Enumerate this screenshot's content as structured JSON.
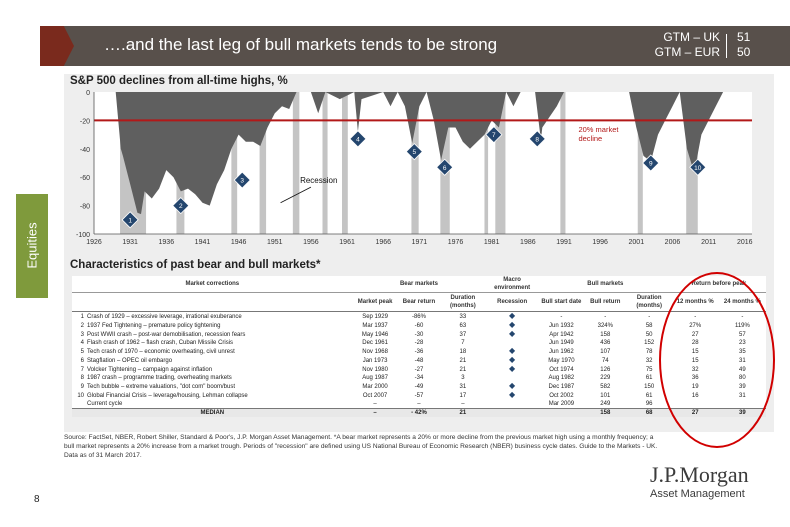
{
  "header": {
    "title": "….and the last leg of bull markets tends to be strong",
    "gtm_lines": [
      "GTM – UK",
      "GTM – EUR"
    ],
    "gtm_pages": [
      "51",
      "50"
    ]
  },
  "side_tab": "Equities",
  "page_number": "8",
  "logo": {
    "line1": "J.P.Morgan",
    "line2": "Asset Management"
  },
  "footnote": "Source: FactSet, NBER, Robert Shiller, Standard & Poor's, J.P. Morgan Asset Management. *A bear market represents a 20% or more decline from the previous market high using a monthly frequency; a bull market represents a 20% increase from a market trough. Periods of \"recession\" are defined using US National Bureau of Economic Research (NBER) business cycle dates. Guide to the Markets - UK. Data as of 31 March 2017.",
  "colors": {
    "header": "#58504b",
    "arrow": "#7a2a1d",
    "tab": "#7f9a3c",
    "area": "#5f5f5f",
    "recession": "#c4c4c4",
    "threshold": "#b21818",
    "marker": "#24466e",
    "oval": "#d10000"
  },
  "chart_data": {
    "type": "area",
    "title": "S&P 500 declines from all-time highs, %",
    "x_ticks": [
      "1926",
      "1931",
      "1936",
      "1941",
      "1946",
      "1951",
      "1956",
      "1961",
      "1966",
      "1971",
      "1976",
      "1981",
      "1986",
      "1991",
      "1996",
      "2001",
      "2006",
      "2011",
      "2016"
    ],
    "y_ticks": [
      0,
      -20,
      -40,
      -60,
      -80,
      -100
    ],
    "ylim": [
      -100,
      0
    ],
    "xlim": [
      1926,
      2017
    ],
    "series": [
      {
        "x": [
          1926,
          1929,
          1929.7,
          1930,
          1931,
          1932,
          1932.5,
          1933,
          1934,
          1935,
          1936,
          1937,
          1938,
          1939,
          1940,
          1941,
          1942,
          1943,
          1944,
          1945,
          1946,
          1947,
          1948,
          1949,
          1950,
          1951,
          1952,
          1953,
          1954,
          1956,
          1957,
          1958,
          1960,
          1962,
          1962.5,
          1963,
          1966,
          1967,
          1968,
          1969,
          1970,
          1971,
          1972,
          1973,
          1974,
          1975,
          1976,
          1977,
          1978,
          1979,
          1980,
          1981,
          1982,
          1983,
          1984,
          1985,
          1986,
          1987,
          1987.8,
          1988,
          1990,
          1991,
          1995,
          1998,
          2000,
          2001,
          2002,
          2003,
          2004,
          2005,
          2006,
          2007,
          2008,
          2009,
          2010,
          2011,
          2012,
          2013,
          2016,
          2017
        ],
        "values": [
          0,
          0,
          -40,
          -45,
          -65,
          -85,
          -86,
          -70,
          -75,
          -68,
          -55,
          -60,
          -70,
          -68,
          -72,
          -78,
          -80,
          -65,
          -55,
          -40,
          -30,
          -35,
          -35,
          -38,
          -25,
          -15,
          -10,
          -12,
          0,
          0,
          -15,
          0,
          -5,
          0,
          -28,
          -5,
          0,
          -10,
          0,
          -10,
          -36,
          -10,
          0,
          -20,
          -48,
          -25,
          -25,
          -35,
          -40,
          -35,
          -30,
          -20,
          -25,
          0,
          -10,
          0,
          0,
          0,
          -34,
          -25,
          -10,
          0,
          0,
          0,
          0,
          -25,
          -45,
          -49,
          -30,
          -20,
          -10,
          0,
          -40,
          -57,
          -30,
          -20,
          -10,
          0,
          0,
          0
        ]
      }
    ],
    "threshold": {
      "value": -20,
      "label": "20% market decline"
    },
    "recessions": [
      [
        1929.6,
        1933.2
      ],
      [
        1937.4,
        1938.5
      ],
      [
        1945,
        1945.8
      ],
      [
        1948.9,
        1949.8
      ],
      [
        1953.5,
        1954.4
      ],
      [
        1957.6,
        1958.3
      ],
      [
        1960.3,
        1961.1
      ],
      [
        1969.9,
        1970.9
      ],
      [
        1973.9,
        1975.2
      ],
      [
        1980,
        1980.5
      ],
      [
        1981.5,
        1982.9
      ],
      [
        1990.5,
        1991.2
      ],
      [
        2001.2,
        2001.9
      ],
      [
        2007.9,
        2009.5
      ]
    ],
    "recession_label": "Recession",
    "markers": [
      {
        "label": "1",
        "x": 1931,
        "y": -90
      },
      {
        "label": "2",
        "x": 1938,
        "y": -80
      },
      {
        "label": "3",
        "x": 1946.5,
        "y": -62
      },
      {
        "label": "4",
        "x": 1962.5,
        "y": -33
      },
      {
        "label": "5",
        "x": 1970.3,
        "y": -42
      },
      {
        "label": "6",
        "x": 1974.5,
        "y": -53
      },
      {
        "label": "7",
        "x": 1981.3,
        "y": -30
      },
      {
        "label": "8",
        "x": 1987.3,
        "y": -33
      },
      {
        "label": "9",
        "x": 2003,
        "y": -50
      },
      {
        "label": "10",
        "x": 2009.5,
        "y": -53
      }
    ]
  },
  "table": {
    "title": "Characteristics of past bear and bull markets*",
    "group_headers": [
      "Market corrections",
      "Bear markets",
      "Macro environment",
      "Bull markets",
      "Return before peak"
    ],
    "sub_headers": [
      "Market peak",
      "Bear return",
      "Duration (months)",
      "Recession",
      "Bull start date",
      "Bull return",
      "Duration (months)",
      "12 months %",
      "24 months %"
    ],
    "rows": [
      {
        "n": "1",
        "desc": "Crash of 1929 – excessive leverage, irrational exuberance",
        "peak": "Sep 1929",
        "bear": "-86%",
        "dur": "33",
        "rec": true,
        "start": "-",
        "bull": "-",
        "bdur": "-",
        "m12": "-",
        "m24": "-"
      },
      {
        "n": "2",
        "desc": "1937 Fed Tightening – premature policy tightening",
        "peak": "Mar 1937",
        "bear": "-60",
        "dur": "63",
        "rec": true,
        "start": "Jun 1932",
        "bull": "324%",
        "bdur": "58",
        "m12": "27%",
        "m24": "119%"
      },
      {
        "n": "3",
        "desc": "Post WWII crash – post-war demobilisation, recession fears",
        "peak": "May 1946",
        "bear": "-30",
        "dur": "37",
        "rec": true,
        "start": "Apr 1942",
        "bull": "158",
        "bdur": "50",
        "m12": "27",
        "m24": "57"
      },
      {
        "n": "4",
        "desc": "Flash crash of 1962 – flash crash, Cuban Missile Crisis",
        "peak": "Dec 1961",
        "bear": "-28",
        "dur": "7",
        "rec": false,
        "start": "Jun 1949",
        "bull": "436",
        "bdur": "152",
        "m12": "28",
        "m24": "23"
      },
      {
        "n": "5",
        "desc": "Tech crash of 1970 – economic overheating, civil unrest",
        "peak": "Nov 1968",
        "bear": "-36",
        "dur": "18",
        "rec": true,
        "start": "Jun 1962",
        "bull": "107",
        "bdur": "78",
        "m12": "15",
        "m24": "35"
      },
      {
        "n": "6",
        "desc": "Stagflation – OPEC oil embargo",
        "peak": "Jan 1973",
        "bear": "-48",
        "dur": "21",
        "rec": true,
        "start": "May 1970",
        "bull": "74",
        "bdur": "32",
        "m12": "15",
        "m24": "31"
      },
      {
        "n": "7",
        "desc": "Volcker Tightening – campaign against inflation",
        "peak": "Nov 1980",
        "bear": "-27",
        "dur": "21",
        "rec": true,
        "start": "Oct 1974",
        "bull": "126",
        "bdur": "75",
        "m12": "32",
        "m24": "49"
      },
      {
        "n": "8",
        "desc": "1987 crash – programme trading, overheating markets",
        "peak": "Aug 1987",
        "bear": "-34",
        "dur": "3",
        "rec": false,
        "start": "Aug 1982",
        "bull": "229",
        "bdur": "61",
        "m12": "36",
        "m24": "80"
      },
      {
        "n": "9",
        "desc": "Tech bubble – extreme valuations, \"dot com\" boom/bust",
        "peak": "Mar 2000",
        "bear": "-49",
        "dur": "31",
        "rec": true,
        "start": "Dec 1987",
        "bull": "582",
        "bdur": "150",
        "m12": "19",
        "m24": "39"
      },
      {
        "n": "10",
        "desc": "Global Financial Crisis – leverage/housing, Lehman collapse",
        "peak": "Oct 2007",
        "bear": "-57",
        "dur": "17",
        "rec": true,
        "start": "Oct 2002",
        "bull": "101",
        "bdur": "61",
        "m12": "16",
        "m24": "31"
      },
      {
        "n": "",
        "desc": "Current cycle",
        "peak": "–",
        "bear": "–",
        "dur": "–",
        "rec": false,
        "start": "Mar 2009",
        "bull": "249",
        "bdur": "96",
        "m12": "",
        "m24": ""
      }
    ],
    "median": {
      "label": "MEDIAN",
      "peak": "–",
      "bear": "- 42%",
      "dur": "21",
      "start": "",
      "bull": "158",
      "bdur": "68",
      "m12": "27",
      "m24": "39"
    }
  }
}
